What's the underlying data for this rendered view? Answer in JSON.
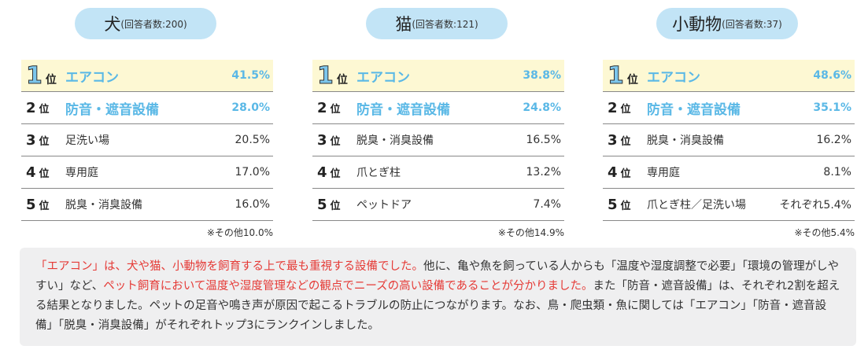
{
  "panels": [
    {
      "animal": "犬",
      "respondents": "(回答者数:200)",
      "ranks": [
        {
          "rank": "1",
          "suffix": "位",
          "item": "エアコン",
          "pct": "41.5%"
        },
        {
          "rank": "2",
          "suffix": "位",
          "item": "防音・遮音設備",
          "pct": "28.0%"
        },
        {
          "rank": "3",
          "suffix": "位",
          "item": "足洗い場",
          "pct": "20.5%"
        },
        {
          "rank": "4",
          "suffix": "位",
          "item": "専用庭",
          "pct": "17.0%"
        },
        {
          "rank": "5",
          "suffix": "位",
          "item": "脱臭・消臭設備",
          "pct": "16.0%"
        }
      ],
      "other": "※その他10.0%"
    },
    {
      "animal": "猫",
      "respondents": "(回答者数:121)",
      "ranks": [
        {
          "rank": "1",
          "suffix": "位",
          "item": "エアコン",
          "pct": "38.8%"
        },
        {
          "rank": "2",
          "suffix": "位",
          "item": "防音・遮音設備",
          "pct": "24.8%"
        },
        {
          "rank": "3",
          "suffix": "位",
          "item": "脱臭・消臭設備",
          "pct": "16.5%"
        },
        {
          "rank": "4",
          "suffix": "位",
          "item": "爪とぎ柱",
          "pct": "13.2%"
        },
        {
          "rank": "5",
          "suffix": "位",
          "item": "ペットドア",
          "pct": "7.4%"
        }
      ],
      "other": "※その他14.9%"
    },
    {
      "animal": "小動物",
      "respondents": "(回答者数:37)",
      "ranks": [
        {
          "rank": "1",
          "suffix": "位",
          "item": "エアコン",
          "pct": "48.6%"
        },
        {
          "rank": "2",
          "suffix": "位",
          "item": "防音・遮音設備",
          "pct": "35.1%"
        },
        {
          "rank": "3",
          "suffix": "位",
          "item": "脱臭・消臭設備",
          "pct": "16.2%"
        },
        {
          "rank": "4",
          "suffix": "位",
          "item": "専用庭",
          "pct": "8.1%"
        },
        {
          "rank": "5",
          "suffix": "位",
          "item": "爪とぎ柱／足洗い場",
          "pct": "それぞれ5.4%"
        }
      ],
      "other": "※その他5.4%"
    }
  ],
  "summary": [
    {
      "text": "「エアコン」は、犬や猫、小動物を飼育する上で最も重視する設備でした。",
      "red": true
    },
    {
      "text": "他に、亀や魚を飼っている人からも「温度や湿度調整で必要」「環境の管理がしやすい」など、",
      "red": false
    },
    {
      "text": "ペット飼育において温度や湿度管理などの観点でニーズの高い設備であることが分かりました。",
      "red": true
    },
    {
      "text": "また「防音・遮音設備」は、それぞれ2割を超える結果となりました。ペットの足音や鳴き声が原因で起こるトラブルの防止につながります。なお、鳥・爬虫類・魚に関しては「エアコン」「防音・遮音設備」「脱臭・消臭設備」がそれぞれトップ3にランクインしました。",
      "red": false
    }
  ]
}
